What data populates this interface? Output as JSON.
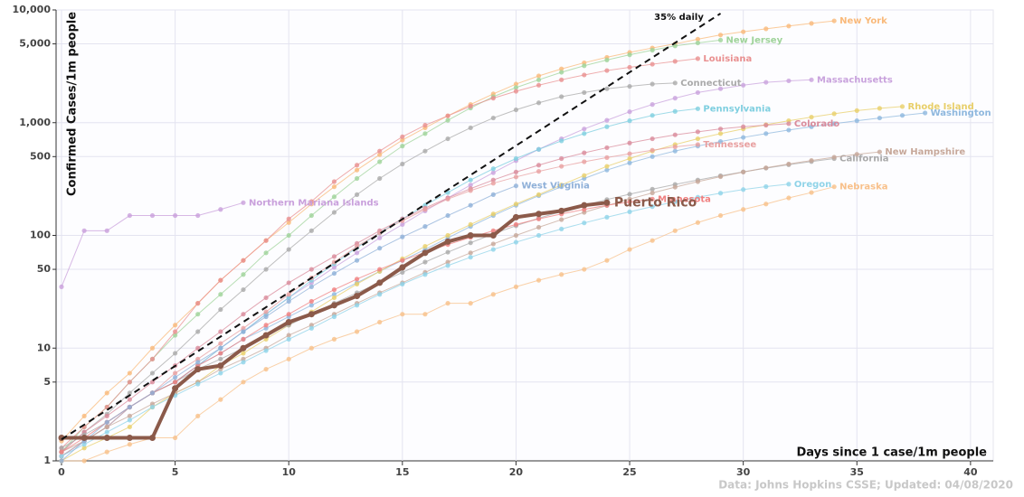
{
  "chart_data": {
    "type": "line",
    "y_label": "Confirmed Cases/1m people",
    "x_label": "Days since 1 case/1m people",
    "source": "Data: Johns Hopkins CSSE; Updated: 04/08/2020",
    "log_y": true,
    "grid": true,
    "xlim": [
      0,
      41
    ],
    "ylim": [
      1,
      10000
    ],
    "xticks": [
      0,
      5,
      10,
      15,
      20,
      25,
      30,
      35,
      40
    ],
    "yticks": [
      1,
      5,
      10,
      50,
      100,
      500,
      {
        "value": 1000,
        "label": "1,000"
      },
      {
        "value": 5000,
        "label": "5,000"
      },
      {
        "value": 10000,
        "label": "10,000"
      }
    ],
    "reference": {
      "label": "35% daily",
      "x": [
        0,
        29
      ],
      "values": [
        1.55,
        9300
      ]
    },
    "x": [
      0,
      1,
      2,
      3,
      4,
      5,
      6,
      7,
      8,
      9,
      10,
      11,
      12,
      13,
      14,
      15,
      16,
      17,
      18,
      19,
      20,
      21,
      22,
      23,
      24,
      25,
      26,
      27,
      28,
      29,
      30,
      31,
      32,
      33,
      34,
      35,
      36,
      37,
      38
    ],
    "series": [
      {
        "name": "New York",
        "color": "#f9b97a",
        "values": [
          1.5,
          2.5,
          4,
          6,
          10,
          16,
          25,
          40,
          60,
          90,
          130,
          190,
          270,
          380,
          520,
          700,
          900,
          1150,
          1450,
          1800,
          2200,
          2600,
          3000,
          3400,
          3800,
          4200,
          4600,
          5000,
          5500,
          6000,
          6400,
          6800,
          7200,
          7600,
          8000,
          null,
          null,
          null,
          null
        ]
      },
      {
        "name": "New Jersey",
        "color": "#9fd39a",
        "values": [
          1.2,
          2,
          3,
          5,
          8,
          13,
          20,
          30,
          45,
          70,
          100,
          150,
          220,
          320,
          450,
          620,
          800,
          1050,
          1350,
          1700,
          2050,
          2400,
          2800,
          3200,
          3600,
          4000,
          4400,
          4800,
          5100,
          5400,
          null,
          null,
          null,
          null,
          null,
          null,
          null,
          null,
          null
        ]
      },
      {
        "name": "Louisiana",
        "color": "#e99090",
        "values": [
          1.3,
          2,
          3,
          5,
          8,
          14,
          25,
          40,
          60,
          90,
          140,
          200,
          300,
          420,
          560,
          750,
          950,
          1150,
          1400,
          1650,
          1900,
          2150,
          2400,
          2650,
          2900,
          3100,
          3300,
          3500,
          3700,
          null,
          null,
          null,
          null,
          null,
          null,
          null,
          null,
          null,
          null
        ]
      },
      {
        "name": "Massachusetts",
        "color": "#c9a3dd",
        "values": [
          1.1,
          1.5,
          2,
          3,
          4,
          5,
          7,
          10,
          14,
          20,
          28,
          38,
          52,
          70,
          95,
          125,
          165,
          215,
          280,
          360,
          460,
          580,
          720,
          880,
          1050,
          1250,
          1450,
          1650,
          1850,
          2000,
          2150,
          2280,
          2350,
          2400,
          null,
          null,
          null,
          null,
          null
        ]
      },
      {
        "name": "Connecticut",
        "color": "#aaaaaa",
        "values": [
          1.2,
          1.8,
          2.6,
          4,
          6,
          9,
          14,
          22,
          33,
          50,
          75,
          110,
          160,
          230,
          320,
          430,
          560,
          720,
          900,
          1100,
          1300,
          1500,
          1700,
          1850,
          2000,
          2100,
          2200,
          2250,
          null,
          null,
          null,
          null,
          null,
          null,
          null,
          null,
          null,
          null,
          null
        ]
      },
      {
        "name": "Washington",
        "color": "#8fb8de",
        "values": [
          1.1,
          1.5,
          2,
          3,
          4,
          5,
          7,
          9,
          12,
          15,
          19,
          24,
          30,
          38,
          48,
          60,
          75,
          95,
          120,
          150,
          185,
          225,
          270,
          320,
          380,
          440,
          500,
          560,
          620,
          680,
          740,
          800,
          860,
          920,
          980,
          1040,
          1100,
          1160,
          1220
        ]
      },
      {
        "name": "Rhode Island",
        "color": "#e8cf6a",
        "values": [
          1,
          1.3,
          1.6,
          2,
          3,
          4,
          5,
          7,
          9,
          12,
          16,
          21,
          28,
          37,
          48,
          62,
          80,
          100,
          125,
          155,
          190,
          230,
          280,
          340,
          410,
          480,
          560,
          640,
          720,
          800,
          880,
          960,
          1040,
          1120,
          1200,
          1280,
          1340,
          1390,
          null
        ]
      },
      {
        "name": "Pennsylvania",
        "color": "#7fcfe0",
        "values": [
          1.1,
          1.5,
          2,
          3,
          4,
          5,
          7,
          10,
          14,
          20,
          28,
          40,
          56,
          78,
          105,
          140,
          185,
          240,
          310,
          390,
          480,
          580,
          690,
          800,
          920,
          1040,
          1160,
          1260,
          1330,
          null,
          null,
          null,
          null,
          null,
          null,
          null,
          null,
          null,
          null
        ]
      },
      {
        "name": "Colorado",
        "color": "#d98b9b",
        "values": [
          1.2,
          1.8,
          2.5,
          3.5,
          5,
          7,
          10,
          14,
          20,
          28,
          38,
          50,
          65,
          85,
          110,
          140,
          175,
          215,
          260,
          310,
          365,
          420,
          480,
          540,
          600,
          660,
          720,
          780,
          830,
          880,
          920,
          950,
          980,
          null,
          null,
          null,
          null,
          null,
          null
        ]
      },
      {
        "name": "Tennessee",
        "color": "#e8a0a0",
        "values": [
          1.1,
          1.5,
          2,
          3,
          4,
          6,
          8,
          11,
          15,
          21,
          30,
          42,
          58,
          80,
          105,
          135,
          170,
          210,
          250,
          290,
          330,
          370,
          410,
          450,
          490,
          530,
          570,
          610,
          640,
          null,
          null,
          null,
          null,
          null,
          null,
          null,
          null,
          null,
          null
        ]
      },
      {
        "name": "California",
        "color": "#a9a9a9",
        "values": [
          1.3,
          1.7,
          2.2,
          3,
          4,
          5,
          6.5,
          8,
          10,
          13,
          16,
          20,
          25,
          31,
          38,
          47,
          58,
          71,
          86,
          103,
          122,
          142,
          163,
          185,
          208,
          232,
          257,
          283,
          310,
          338,
          366,
          395,
          424,
          452,
          480,
          null,
          null,
          null,
          null
        ]
      },
      {
        "name": "New Hampshire",
        "color": "#c7a89a",
        "values": [
          1.2,
          1.5,
          2,
          2.5,
          3.2,
          4,
          5,
          6.5,
          8,
          10,
          13,
          16,
          20,
          25,
          31,
          38,
          47,
          58,
          70,
          84,
          100,
          118,
          138,
          160,
          184,
          210,
          238,
          268,
          300,
          332,
          365,
          398,
          430,
          462,
          494,
          524,
          550,
          null,
          null
        ]
      },
      {
        "name": "Oregon",
        "color": "#8fd3e8",
        "values": [
          1.1,
          1.4,
          1.8,
          2.3,
          3,
          3.8,
          4.8,
          6,
          7.5,
          9.5,
          12,
          15,
          19,
          24,
          30,
          37,
          45,
          54,
          64,
          75,
          87,
          100,
          114,
          129,
          145,
          162,
          180,
          199,
          218,
          237,
          255,
          271,
          285,
          null,
          null,
          null,
          null,
          null,
          null
        ]
      },
      {
        "name": "Nebraska",
        "color": "#f8c08a",
        "values": [
          1,
          1,
          1.2,
          1.4,
          1.6,
          1.6,
          2.5,
          3.5,
          5,
          6.5,
          8,
          10,
          12,
          14,
          17,
          20,
          20,
          25,
          25,
          30,
          35,
          40,
          45,
          50,
          60,
          75,
          90,
          110,
          130,
          150,
          170,
          190,
          215,
          240,
          270,
          null,
          null,
          null,
          null
        ]
      },
      {
        "name": "Minnesota",
        "color": "#f08080",
        "values": [
          1.2,
          1.6,
          2.2,
          3,
          4,
          5,
          7,
          9,
          12,
          16,
          20,
          26,
          33,
          41,
          50,
          60,
          71,
          83,
          96,
          110,
          125,
          140,
          155,
          170,
          185,
          198,
          210,
          null,
          null,
          null,
          null,
          null,
          null,
          null,
          null,
          null,
          null,
          null,
          null
        ]
      },
      {
        "name": "West Virginia",
        "color": "#8fb0d8",
        "values": [
          1,
          1.5,
          2.2,
          3,
          4,
          5.5,
          7.5,
          10,
          14,
          19,
          26,
          35,
          46,
          60,
          77,
          97,
          120,
          150,
          185,
          230,
          275,
          null,
          null,
          null,
          null,
          null,
          null,
          null,
          null,
          null,
          null,
          null,
          null,
          null,
          null,
          null,
          null,
          null,
          null
        ]
      },
      {
        "name": "Northern Mariana Islands",
        "color": "#c9a0dc",
        "values": [
          35,
          110,
          110,
          150,
          150,
          150,
          150,
          170,
          195,
          null,
          null,
          null,
          null,
          null,
          null,
          null,
          null,
          null,
          null,
          null,
          null,
          null,
          null,
          null,
          null,
          null,
          null,
          null,
          null,
          null,
          null,
          null,
          null,
          null,
          null,
          null,
          null,
          null,
          null
        ]
      },
      {
        "name": "Puerto Rico",
        "color": "#8b5a4a",
        "emphasis": true,
        "values": [
          1.6,
          1.6,
          1.6,
          1.6,
          1.6,
          4.4,
          6.5,
          7,
          10,
          13,
          17,
          20,
          24,
          29,
          38,
          52,
          70,
          88,
          100,
          100,
          145,
          155,
          165,
          185,
          195,
          null,
          null,
          null,
          null,
          null,
          null,
          null,
          null,
          null,
          null,
          null,
          null,
          null,
          null
        ]
      }
    ]
  }
}
